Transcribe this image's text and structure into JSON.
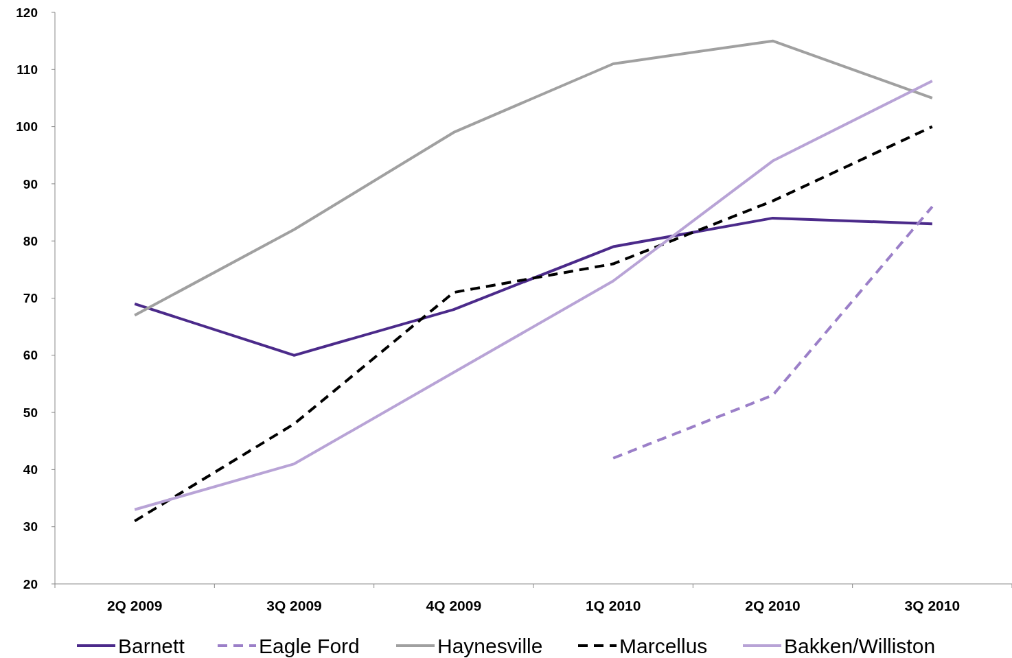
{
  "chart_data": {
    "type": "line",
    "categories": [
      "2Q 2009",
      "3Q 2009",
      "4Q 2009",
      "1Q 2010",
      "2Q 2010",
      "3Q 2010"
    ],
    "series": [
      {
        "name": "Barnett",
        "color": "#4b2a8a",
        "line_style": "solid",
        "values": [
          69,
          60,
          68,
          79,
          84,
          83
        ]
      },
      {
        "name": "Eagle Ford",
        "color": "#9b7fc8",
        "line_style": "dashed",
        "values": [
          null,
          null,
          null,
          42,
          53,
          86
        ]
      },
      {
        "name": "Haynesville",
        "color": "#a0a0a0",
        "line_style": "solid",
        "values": [
          67,
          82,
          99,
          111,
          115,
          105
        ]
      },
      {
        "name": "Marcellus",
        "color": "#000000",
        "line_style": "dashed",
        "values": [
          31,
          48,
          71,
          76,
          87,
          100
        ]
      },
      {
        "name": "Bakken/Williston",
        "color": "#b8a3d6",
        "line_style": "solid",
        "values": [
          33,
          41,
          57,
          73,
          94,
          108
        ]
      }
    ],
    "ylim": [
      20,
      120
    ],
    "yticks": [
      20,
      30,
      40,
      50,
      60,
      70,
      80,
      90,
      100,
      110,
      120
    ],
    "legend": "bottom",
    "marker": "none",
    "grid": false
  }
}
